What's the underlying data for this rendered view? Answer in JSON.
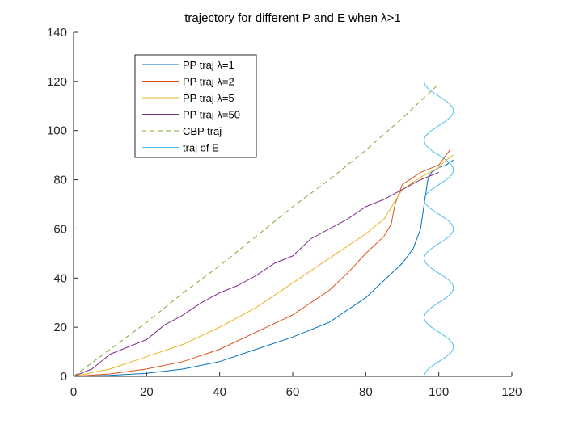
{
  "chart_data": {
    "type": "line",
    "title": "trajectory for different P and E when λ>1",
    "xlabel": "",
    "ylabel": "",
    "xlim": [
      0,
      120
    ],
    "ylim": [
      0,
      140
    ],
    "x_ticks": [
      "0",
      "20",
      "40",
      "60",
      "80",
      "100",
      "120"
    ],
    "y_ticks": [
      "0",
      "20",
      "40",
      "60",
      "80",
      "100",
      "120",
      "140"
    ],
    "grid": false,
    "legend_position": "upper-left",
    "series": [
      {
        "name": "PP traj λ=1",
        "color": "#0072BD",
        "style": "solid",
        "x": [
          0,
          10,
          20,
          30,
          40,
          50,
          60,
          70,
          80,
          90,
          93,
          95,
          96,
          97,
          98,
          100,
          102,
          104
        ],
        "y": [
          0,
          0.4,
          1.2,
          3,
          6,
          11,
          16,
          22,
          32,
          46,
          52,
          60,
          70,
          80,
          83,
          85,
          86,
          88
        ]
      },
      {
        "name": "PP traj λ=2",
        "color": "#D95319",
        "style": "solid",
        "x": [
          0,
          10,
          20,
          30,
          40,
          50,
          60,
          70,
          75,
          80,
          85,
          87,
          88,
          90,
          95,
          100,
          101,
          102,
          103
        ],
        "y": [
          0,
          1,
          3,
          6,
          11,
          18,
          25,
          35,
          42,
          50,
          57,
          62,
          70,
          78,
          83,
          86,
          88,
          90,
          92
        ]
      },
      {
        "name": "PP traj λ=5",
        "color": "#EDB120",
        "style": "solid",
        "x": [
          0,
          10,
          20,
          30,
          40,
          50,
          60,
          70,
          80,
          85,
          90,
          95,
          100,
          102,
          104
        ],
        "y": [
          0,
          3,
          8,
          13,
          20,
          28,
          38,
          48,
          58,
          64,
          76,
          81,
          85,
          88,
          90
        ]
      },
      {
        "name": "PP traj λ=50",
        "color": "#7E2F8E",
        "style": "solid",
        "x": [
          0,
          5,
          10,
          15,
          20,
          25,
          30,
          35,
          40,
          45,
          50,
          55,
          60,
          65,
          70,
          75,
          80,
          85,
          90,
          95,
          100
        ],
        "y": [
          0,
          3,
          9,
          12,
          15,
          21,
          25,
          30,
          34,
          37,
          41,
          46,
          49,
          56,
          60,
          64,
          69,
          72,
          76,
          80,
          83
        ]
      },
      {
        "name": "CBP traj",
        "color": "#77AC30",
        "style": "dashed",
        "x": [
          0,
          10,
          20,
          30,
          40,
          50,
          60,
          70,
          80,
          90,
          100
        ],
        "y": [
          0,
          11,
          22,
          34,
          45,
          57,
          69,
          80,
          92,
          105,
          119
        ]
      },
      {
        "name": "traj of E",
        "color": "#4DBEEE",
        "style": "solid",
        "amplitude": 4,
        "y_period": 24,
        "y_range": [
          0,
          120
        ]
      }
    ]
  }
}
